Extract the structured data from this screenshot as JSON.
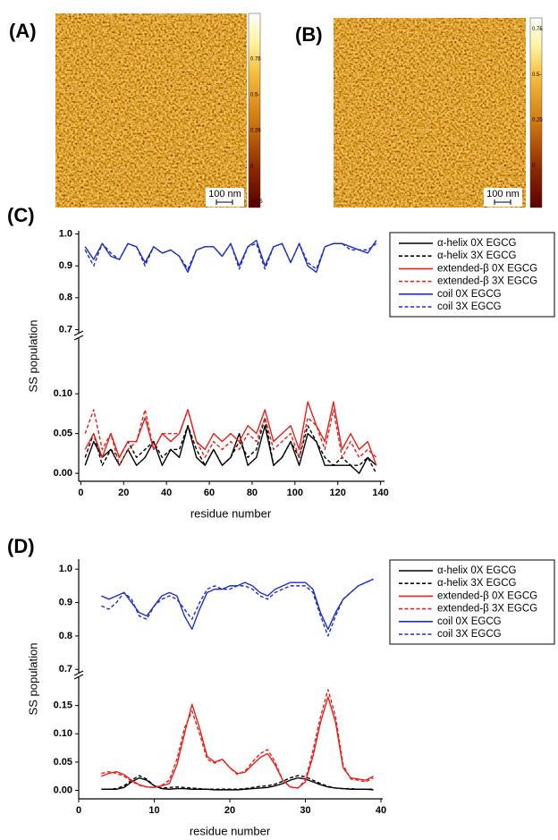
{
  "images": [
    {
      "label": "(A)",
      "scale_bar": "100 nm",
      "colorbar": {
        "lim": [
          -0.29,
          1.07
        ],
        "ticks": [
          0.75,
          0.5,
          0.25,
          0,
          -0.25
        ]
      }
    },
    {
      "label": "(B)",
      "scale_bar": "100 nm",
      "colorbar": {
        "lim": [
          -0.23,
          0.81
        ],
        "ticks": [
          0.75,
          0.5,
          0.25,
          0
        ]
      }
    }
  ],
  "chart_data": [
    {
      "type": "line",
      "panel_label": "(C)",
      "x_label": "residue number",
      "y_label": "SS population",
      "x": [
        2,
        6,
        10,
        14,
        18,
        22,
        26,
        30,
        34,
        38,
        42,
        46,
        50,
        54,
        58,
        62,
        66,
        70,
        74,
        78,
        82,
        86,
        90,
        94,
        98,
        102,
        106,
        110,
        114,
        118,
        122,
        126,
        130,
        134,
        138
      ],
      "xlim": [
        -1,
        141
      ],
      "xticks": [
        0,
        20,
        40,
        60,
        80,
        100,
        120,
        140
      ],
      "ylim": [
        -0.01,
        1.01
      ],
      "ybreak": [
        0.17,
        0.69
      ],
      "yticks": [
        {
          "value": 0,
          "label": "0.00"
        },
        0.05,
        {
          "value": 0.1,
          "label": "0.10"
        },
        0.7,
        0.8,
        0.9,
        {
          "value": 1,
          "label": "1.0"
        }
      ],
      "series": [
        {
          "name": "α-helix 0X EGCG",
          "color": "#000000",
          "linestyle": "solid",
          "values": [
            0.01,
            0.04,
            0.02,
            0.03,
            0.01,
            0.03,
            0.01,
            0.02,
            0.04,
            0.01,
            0.03,
            0.02,
            0.06,
            0.02,
            0.01,
            0.03,
            0.01,
            0.02,
            0.05,
            0.01,
            0.02,
            0.06,
            0.01,
            0.02,
            0.04,
            0.01,
            0.05,
            0.04,
            0.01,
            0.01,
            0.01,
            0.01,
            0.0,
            0.02,
            0.01
          ]
        },
        {
          "name": "α-helix 3X EGCG",
          "color": "#000000",
          "linestyle": "dashed",
          "values": [
            0.02,
            0.05,
            0.01,
            0.03,
            0.02,
            0.04,
            0.02,
            0.03,
            0.04,
            0.02,
            0.03,
            0.03,
            0.06,
            0.03,
            0.01,
            0.03,
            0.01,
            0.02,
            0.04,
            0.02,
            0.03,
            0.07,
            0.01,
            0.02,
            0.04,
            0.02,
            0.06,
            0.04,
            0.02,
            0.01,
            0.02,
            0.01,
            0.01,
            0.02,
            0.0
          ]
        },
        {
          "name": "extended-β 0X EGCG",
          "color": "#e8211c",
          "linestyle": "solid",
          "values": [
            0.03,
            0.05,
            0.02,
            0.05,
            0.02,
            0.04,
            0.04,
            0.07,
            0.03,
            0.05,
            0.04,
            0.05,
            0.08,
            0.04,
            0.03,
            0.05,
            0.04,
            0.05,
            0.04,
            0.06,
            0.05,
            0.08,
            0.04,
            0.05,
            0.06,
            0.03,
            0.09,
            0.06,
            0.04,
            0.09,
            0.03,
            0.05,
            0.03,
            0.04,
            0.01
          ]
        },
        {
          "name": "extended-β 3X EGCG",
          "color": "#e8211c",
          "linestyle": "dashed",
          "values": [
            0.05,
            0.08,
            0.03,
            0.05,
            0.01,
            0.03,
            0.04,
            0.08,
            0.03,
            0.05,
            0.05,
            0.05,
            0.08,
            0.04,
            0.02,
            0.04,
            0.03,
            0.04,
            0.03,
            0.05,
            0.04,
            0.07,
            0.03,
            0.04,
            0.05,
            0.02,
            0.07,
            0.06,
            0.03,
            0.08,
            0.02,
            0.04,
            0.02,
            0.03,
            0.02
          ]
        },
        {
          "name": "coil 0X EGCG",
          "color": "#1f2fc4",
          "linestyle": "solid",
          "values": [
            0.96,
            0.92,
            0.97,
            0.93,
            0.92,
            0.97,
            0.96,
            0.91,
            0.96,
            0.94,
            0.95,
            0.93,
            0.88,
            0.95,
            0.96,
            0.96,
            0.93,
            0.97,
            0.9,
            0.96,
            0.98,
            0.9,
            0.96,
            0.97,
            0.91,
            0.97,
            0.9,
            0.88,
            0.96,
            0.97,
            0.97,
            0.96,
            0.95,
            0.94,
            0.98
          ]
        },
        {
          "name": "coil 3X EGCG",
          "color": "#1f2fc4",
          "linestyle": "dashed",
          "values": [
            0.95,
            0.9,
            0.97,
            0.94,
            0.92,
            0.97,
            0.96,
            0.9,
            0.96,
            0.94,
            0.95,
            0.93,
            0.89,
            0.95,
            0.96,
            0.96,
            0.93,
            0.97,
            0.89,
            0.96,
            0.97,
            0.89,
            0.96,
            0.97,
            0.91,
            0.97,
            0.91,
            0.89,
            0.96,
            0.97,
            0.97,
            0.95,
            0.95,
            0.95,
            0.97
          ]
        }
      ]
    },
    {
      "type": "line",
      "panel_label": "(D)",
      "x_label": "residue number",
      "y_label": "SS population",
      "x": [
        3,
        4,
        5,
        6,
        7,
        8,
        9,
        10,
        11,
        12,
        13,
        14,
        15,
        16,
        17,
        18,
        19,
        20,
        21,
        22,
        23,
        24,
        25,
        26,
        27,
        28,
        29,
        30,
        31,
        32,
        33,
        34,
        35,
        36,
        37,
        38,
        39
      ],
      "xlim": [
        0,
        40
      ],
      "xticks": [
        0,
        10,
        20,
        30,
        40
      ],
      "ylim": [
        -0.015,
        1.03
      ],
      "ybreak": [
        0.2,
        0.69
      ],
      "yticks": [
        {
          "value": 0,
          "label": "0.00"
        },
        0.05,
        {
          "value": 0.1,
          "label": "0.10"
        },
        0.15,
        0.7,
        0.8,
        0.9,
        {
          "value": 1,
          "label": "1.0"
        }
      ],
      "series": [
        {
          "name": "α-helix 0X EGCG",
          "color": "#000000",
          "linestyle": "solid",
          "values": [
            0.002,
            0.002,
            0.002,
            0.005,
            0.015,
            0.022,
            0.018,
            0.008,
            0.003,
            0.002,
            0.003,
            0.003,
            0.002,
            0.002,
            0.002,
            0.001,
            0.001,
            0.001,
            0.001,
            0.002,
            0.003,
            0.004,
            0.005,
            0.008,
            0.012,
            0.018,
            0.022,
            0.02,
            0.015,
            0.01,
            0.006,
            0.004,
            0.003,
            0.002,
            0.002,
            0.002,
            0.001
          ]
        },
        {
          "name": "α-helix 3X EGCG",
          "color": "#000000",
          "linestyle": "dashed",
          "values": [
            0.002,
            0.002,
            0.003,
            0.008,
            0.018,
            0.026,
            0.02,
            0.008,
            0.004,
            0.005,
            0.006,
            0.005,
            0.004,
            0.003,
            0.002,
            0.002,
            0.002,
            0.002,
            0.002,
            0.003,
            0.005,
            0.007,
            0.008,
            0.011,
            0.016,
            0.022,
            0.026,
            0.024,
            0.018,
            0.012,
            0.007,
            0.004,
            0.003,
            0.003,
            0.002,
            0.002,
            0.002
          ]
        },
        {
          "name": "extended-β 0X EGCG",
          "color": "#e8211c",
          "linestyle": "solid",
          "values": [
            0.025,
            0.03,
            0.033,
            0.028,
            0.018,
            0.01,
            0.006,
            0.005,
            0.008,
            0.012,
            0.045,
            0.1,
            0.152,
            0.11,
            0.06,
            0.05,
            0.055,
            0.04,
            0.03,
            0.032,
            0.045,
            0.058,
            0.065,
            0.045,
            0.018,
            0.006,
            0.004,
            0.015,
            0.06,
            0.12,
            0.165,
            0.12,
            0.04,
            0.022,
            0.02,
            0.018,
            0.025
          ]
        },
        {
          "name": "extended-β 3X EGCG",
          "color": "#e8211c",
          "linestyle": "dashed",
          "values": [
            0.03,
            0.033,
            0.03,
            0.025,
            0.016,
            0.009,
            0.006,
            0.005,
            0.009,
            0.018,
            0.055,
            0.11,
            0.14,
            0.1,
            0.055,
            0.048,
            0.055,
            0.04,
            0.028,
            0.034,
            0.05,
            0.065,
            0.072,
            0.05,
            0.018,
            0.006,
            0.004,
            0.018,
            0.07,
            0.13,
            0.178,
            0.13,
            0.045,
            0.02,
            0.018,
            0.015,
            0.022
          ]
        },
        {
          "name": "coil 0X EGCG",
          "color": "#1f2fc4",
          "linestyle": "solid",
          "values": [
            0.92,
            0.91,
            0.92,
            0.93,
            0.9,
            0.87,
            0.86,
            0.89,
            0.92,
            0.93,
            0.92,
            0.86,
            0.82,
            0.88,
            0.93,
            0.94,
            0.94,
            0.95,
            0.95,
            0.96,
            0.95,
            0.93,
            0.92,
            0.94,
            0.95,
            0.96,
            0.96,
            0.96,
            0.94,
            0.87,
            0.82,
            0.87,
            0.91,
            0.93,
            0.95,
            0.96,
            0.97
          ]
        },
        {
          "name": "coil 3X EGCG",
          "color": "#1f2fc4",
          "linestyle": "dashed",
          "values": [
            0.89,
            0.88,
            0.9,
            0.93,
            0.91,
            0.86,
            0.85,
            0.89,
            0.91,
            0.92,
            0.91,
            0.88,
            0.85,
            0.9,
            0.94,
            0.95,
            0.94,
            0.94,
            0.95,
            0.95,
            0.94,
            0.92,
            0.91,
            0.93,
            0.94,
            0.95,
            0.95,
            0.95,
            0.93,
            0.86,
            0.8,
            0.86,
            0.91,
            0.93,
            0.95,
            0.96,
            0.97
          ]
        }
      ]
    }
  ]
}
